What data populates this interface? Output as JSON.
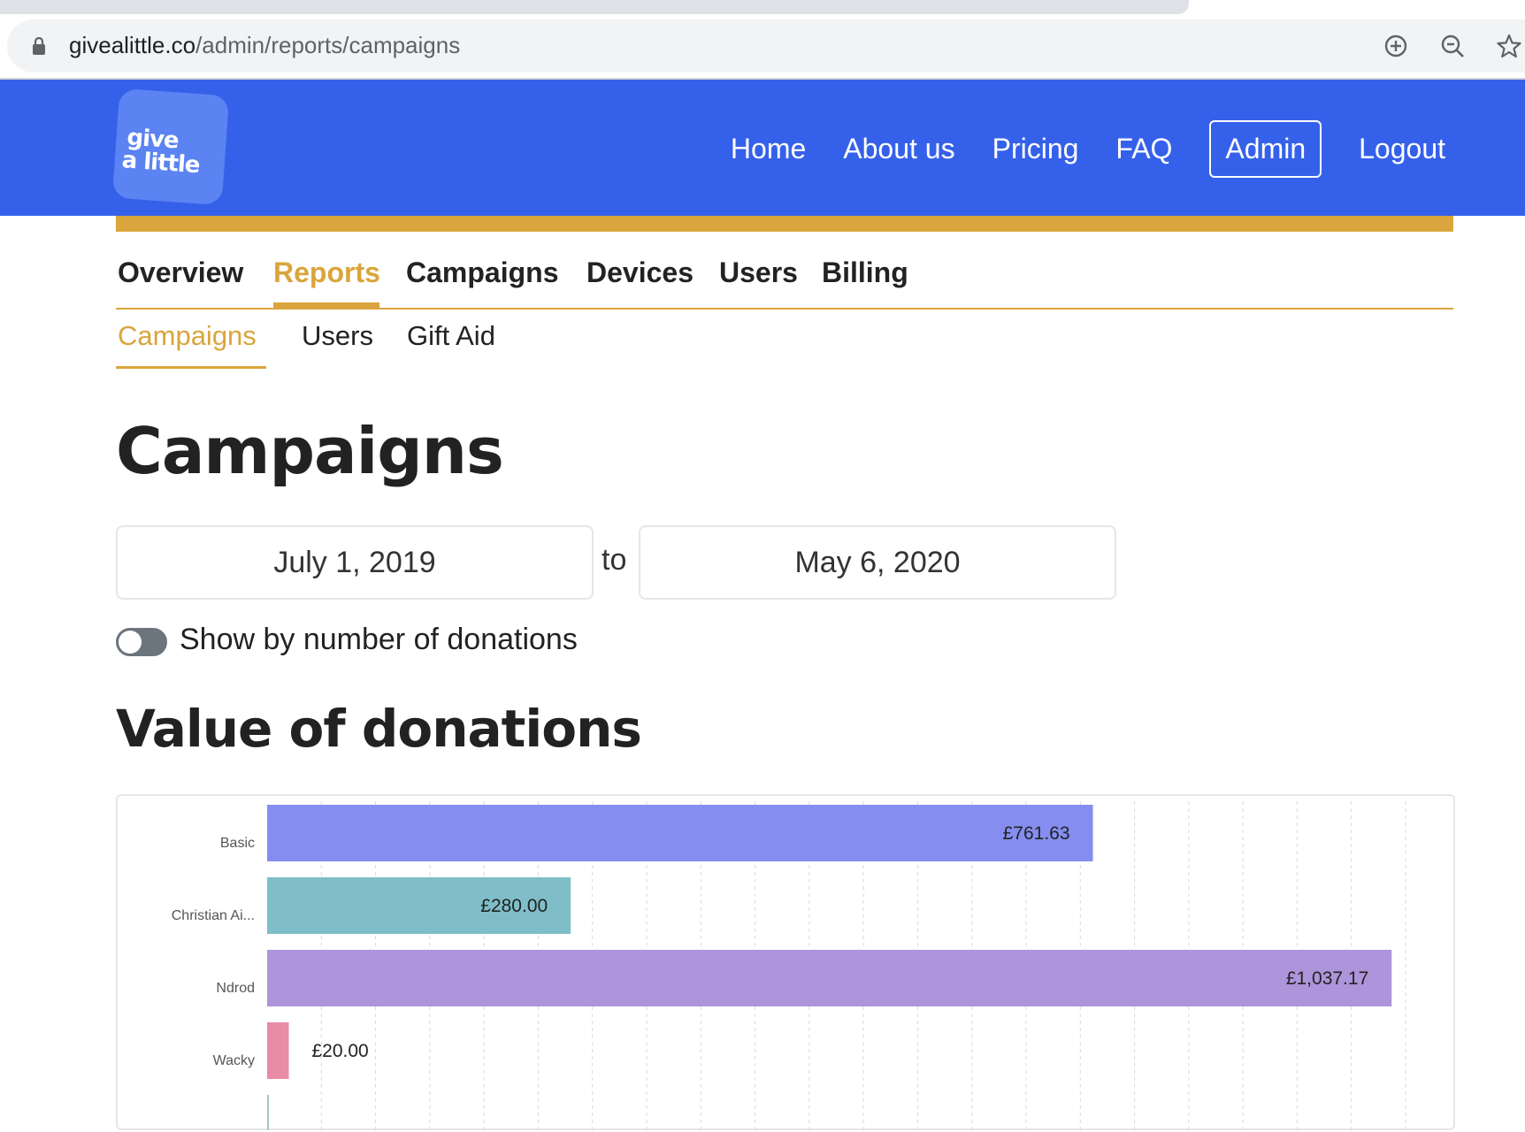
{
  "browser": {
    "url_host": "givealittle.co",
    "url_path": "/admin/reports/campaigns",
    "icons": [
      "lock-icon",
      "add-circle-icon",
      "zoom-out-icon",
      "star-icon"
    ]
  },
  "header": {
    "logo_line1": "give",
    "logo_line2": "a little",
    "nav": [
      "Home",
      "About us",
      "Pricing",
      "FAQ",
      "Admin",
      "Logout"
    ],
    "active_nav": "Admin"
  },
  "tabs": {
    "items": [
      "Overview",
      "Reports",
      "Campaigns",
      "Devices",
      "Users",
      "Billing"
    ],
    "active": "Reports"
  },
  "subtabs": {
    "items": [
      "Campaigns",
      "Users",
      "Gift Aid"
    ],
    "active": "Campaigns"
  },
  "page": {
    "title": "Campaigns",
    "date_from": "July 1, 2019",
    "to_label": "to",
    "date_to": "May 6, 2020",
    "toggle_label": "Show by number of donations",
    "toggle_on": false,
    "section_title": "Value of donations"
  },
  "colors": {
    "header_blue": "#3561ea",
    "accent_gold": "#d9a53c"
  },
  "chart_data": {
    "type": "bar",
    "orientation": "horizontal",
    "categories": [
      "Basic",
      "Christian Ai...",
      "Ndrod",
      "Wacky"
    ],
    "values": [
      761.63,
      280.0,
      1037.17,
      20.0
    ],
    "data_labels": [
      "£761.63",
      "£280.00",
      "£1,037.17",
      "£20.00"
    ],
    "colors": [
      "#858ef0",
      "#7fbec9",
      "#ae94da",
      "#e88ca6"
    ],
    "xlim": [
      0,
      1050
    ],
    "grid": true,
    "truncated": true
  }
}
